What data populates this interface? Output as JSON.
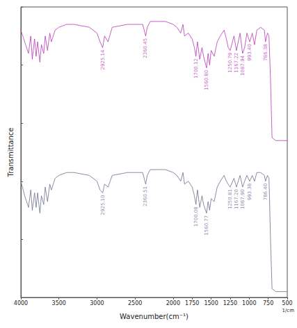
{
  "chart_data": {
    "type": "line",
    "x_label": "Wavenumber(cm⁻¹)",
    "x_unit": "1/cm",
    "y_label": "Transmittance",
    "xlim": [
      4000,
      500
    ],
    "xticks": [
      4000,
      3500,
      3000,
      2500,
      2000,
      1750,
      1500,
      1250,
      1000,
      750,
      500
    ],
    "ylim": [
      0,
      100
    ],
    "grid": false,
    "tick_labels": "x",
    "x": [
      4000,
      3950,
      3900,
      3870,
      3850,
      3820,
      3800,
      3780,
      3750,
      3730,
      3700,
      3680,
      3650,
      3620,
      3600,
      3550,
      3500,
      3400,
      3300,
      3100,
      3000,
      2960,
      2925,
      2900,
      2855,
      2800,
      2600,
      2400,
      2360,
      2340,
      2300,
      2200,
      2100,
      2000,
      1950,
      1900,
      1870,
      1850,
      1800,
      1750,
      1720,
      1700,
      1680,
      1650,
      1620,
      1600,
      1560,
      1540,
      1520,
      1500,
      1460,
      1420,
      1380,
      1330,
      1300,
      1276,
      1250,
      1200,
      1167,
      1120,
      1087,
      1060,
      1030,
      993,
      960,
      930,
      900,
      850,
      800,
      786,
      760,
      740,
      720,
      700,
      650,
      600,
      550,
      500
    ],
    "series": [
      {
        "color": "#b53ab5",
        "values": [
          92,
          88,
          84,
          90,
          82,
          89,
          83,
          88,
          81,
          87,
          84,
          90,
          85,
          91,
          88,
          92,
          93,
          94,
          94,
          93,
          91,
          88,
          86,
          90,
          88,
          93,
          94,
          94,
          90,
          93,
          95,
          95,
          95,
          94,
          93,
          91,
          94,
          90,
          91,
          89,
          86,
          83,
          88,
          82,
          86,
          83,
          79,
          84,
          80,
          85,
          83,
          88,
          90,
          92,
          89,
          86,
          85,
          90,
          85,
          91,
          84,
          86,
          91,
          88,
          91,
          87,
          92,
          93,
          92,
          88,
          91,
          90,
          75,
          55,
          54,
          54,
          54,
          54
        ],
        "peaks": [
          {
            "x": 2925.14,
            "y": 86,
            "label": "2925.14"
          },
          {
            "x": 2360.45,
            "y": 90,
            "label": "2360.45"
          },
          {
            "x": 1700.12,
            "y": 83,
            "label": "1700.12"
          },
          {
            "x": 1560.8,
            "y": 79,
            "label": "1560.80"
          },
          {
            "x": 1250.79,
            "y": 85,
            "label": "1250.79"
          },
          {
            "x": 1167.22,
            "y": 85,
            "label": "1167.22"
          },
          {
            "x": 1087.94,
            "y": 84,
            "label": "1087.94"
          },
          {
            "x": 993.4,
            "y": 88,
            "label": "993.40"
          },
          {
            "x": 786.38,
            "y": 88,
            "label": "786.38"
          }
        ]
      },
      {
        "color": "#6b6f8e",
        "values": [
          40,
          35,
          31,
          37,
          30,
          36,
          31,
          36,
          29,
          35,
          32,
          38,
          33,
          39,
          37,
          41,
          42,
          43,
          43,
          42,
          40,
          37,
          36,
          39,
          38,
          42,
          43,
          43,
          39,
          42,
          44,
          44,
          44,
          43,
          42,
          40,
          43,
          39,
          40,
          38,
          35,
          32,
          37,
          31,
          35,
          32,
          29,
          33,
          30,
          34,
          33,
          38,
          40,
          42,
          40,
          39,
          38,
          41,
          38,
          42,
          38,
          40,
          42,
          40,
          42,
          40,
          43,
          43,
          42,
          40,
          42,
          41,
          20,
          3,
          2,
          2,
          2,
          2
        ],
        "peaks": [
          {
            "x": 2925.1,
            "y": 36,
            "label": "2925.10"
          },
          {
            "x": 2360.51,
            "y": 39,
            "label": "2360.51"
          },
          {
            "x": 1700.08,
            "y": 32,
            "label": "1700.08"
          },
          {
            "x": 1560.77,
            "y": 29,
            "label": "1560.77"
          },
          {
            "x": 1250.81,
            "y": 38,
            "label": "1250.81"
          },
          {
            "x": 1167.2,
            "y": 38,
            "label": "1167.20"
          },
          {
            "x": 1087.9,
            "y": 38,
            "label": "1087.90"
          },
          {
            "x": 993.38,
            "y": 40,
            "label": "993.38"
          },
          {
            "x": 786.4,
            "y": 40,
            "label": "786.40"
          }
        ]
      }
    ]
  }
}
